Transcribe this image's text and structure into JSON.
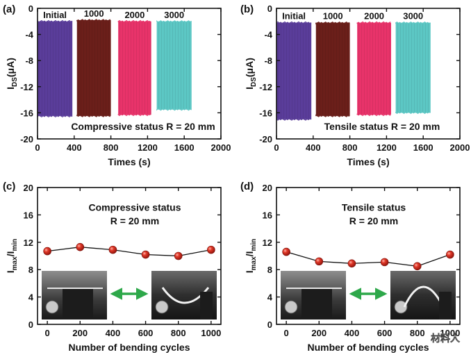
{
  "colors": {
    "initial": "#5a3d9a",
    "c1000": "#6b1f1a",
    "c2000": "#e8336a",
    "c3000": "#5cc7c4",
    "marker": "#d62718",
    "arrow": "#2ea84a"
  },
  "watermark": "材料人",
  "chart_data": [
    {
      "panel": "(a)",
      "type": "area",
      "xlabel": "Times (s)",
      "ylabel_main": "I",
      "ylabel_sub": "DS",
      "ylabel_unit": "(μA)",
      "xlim": [
        0,
        2000
      ],
      "ylim": [
        -20,
        0
      ],
      "xticks": [
        0,
        400,
        800,
        1200,
        1600,
        2000
      ],
      "yticks": [
        -20,
        -16,
        -12,
        -8,
        -4,
        0
      ],
      "annotation": "Compressive status R = 20 mm",
      "series": [
        {
          "name": "Initial",
          "x_range": [
            0,
            380
          ],
          "y_max": -2,
          "y_min": -16.5,
          "color_key": "initial"
        },
        {
          "name": "1000",
          "x_range": [
            430,
            800
          ],
          "y_max": -1.8,
          "y_min": -16.5,
          "color_key": "c1000"
        },
        {
          "name": "2000",
          "x_range": [
            880,
            1240
          ],
          "y_max": -2,
          "y_min": -16.3,
          "color_key": "c2000"
        },
        {
          "name": "3000",
          "x_range": [
            1300,
            1680
          ],
          "y_max": -2,
          "y_min": -15.5,
          "color_key": "c3000"
        }
      ]
    },
    {
      "panel": "(b)",
      "type": "area",
      "xlabel": "Times (s)",
      "ylabel_main": "I",
      "ylabel_sub": "DS",
      "ylabel_unit": "(μA)",
      "xlim": [
        0,
        2000
      ],
      "ylim": [
        -20,
        0
      ],
      "xticks": [
        0,
        400,
        800,
        1200,
        1600,
        2000
      ],
      "yticks": [
        -20,
        -16,
        -12,
        -8,
        -4,
        0
      ],
      "annotation": "Tensile status R = 20 mm",
      "series": [
        {
          "name": "Initial",
          "x_range": [
            0,
            380
          ],
          "y_max": -2.2,
          "y_min": -17,
          "color_key": "initial"
        },
        {
          "name": "1000",
          "x_range": [
            430,
            800
          ],
          "y_max": -2.2,
          "y_min": -16.5,
          "color_key": "c1000"
        },
        {
          "name": "2000",
          "x_range": [
            880,
            1250
          ],
          "y_max": -2.2,
          "y_min": -16.3,
          "color_key": "c2000"
        },
        {
          "name": "3000",
          "x_range": [
            1300,
            1680
          ],
          "y_max": -2.2,
          "y_min": -16,
          "color_key": "c3000"
        }
      ]
    },
    {
      "panel": "(c)",
      "type": "scatter",
      "xlabel": "Number of bending cycles",
      "ylabel_main": "I",
      "ylabel_sub1": "max",
      "ylabel_mid": "/I",
      "ylabel_sub2": "min",
      "xlim": [
        -60,
        1060
      ],
      "ylim": [
        0,
        20
      ],
      "xticks": [
        0,
        200,
        400,
        600,
        800,
        1000
      ],
      "yticks": [
        0,
        4,
        8,
        12,
        16,
        20
      ],
      "annotation_line1": "Compressive status",
      "annotation_line2": "R = 20 mm",
      "x": [
        0,
        200,
        400,
        600,
        800,
        1000
      ],
      "y": [
        10.7,
        11.3,
        10.9,
        10.2,
        10.0,
        10.9
      ]
    },
    {
      "panel": "(d)",
      "type": "scatter",
      "xlabel": "Number of bending cycles",
      "ylabel_main": "I",
      "ylabel_sub1": "max",
      "ylabel_mid": "/I",
      "ylabel_sub2": "min",
      "xlim": [
        -60,
        1060
      ],
      "ylim": [
        0,
        20
      ],
      "xticks": [
        0,
        200,
        400,
        600,
        800,
        1000
      ],
      "yticks": [
        0,
        4,
        8,
        12,
        16,
        20
      ],
      "annotation_line1": "Tensile status",
      "annotation_line2": "R = 20 mm",
      "x": [
        0,
        200,
        400,
        600,
        800,
        1000
      ],
      "y": [
        10.6,
        9.2,
        8.9,
        9.1,
        8.5,
        10.2
      ]
    }
  ]
}
